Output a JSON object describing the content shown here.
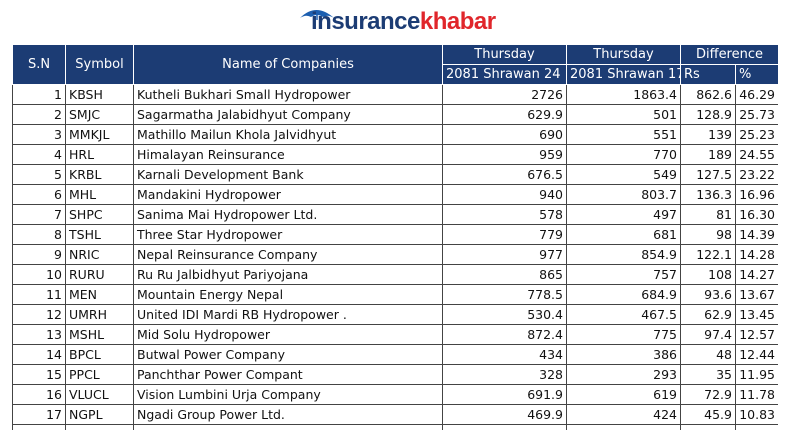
{
  "logo": {
    "part1": "insurance",
    "part2": "khabar"
  },
  "table": {
    "header": {
      "sn": "S.N",
      "symbol": "Symbol",
      "name": "Name of Companies",
      "current_day": "Thursday",
      "current_date": "2081 Shrawan 24",
      "previous_day": "Thursday",
      "previous_date": "2081 Shrawan 17",
      "difference": "Difference",
      "rs": "Rs",
      "pct": "%"
    },
    "rows": [
      [
        "1",
        "KBSH",
        "Kutheli Bukhari Small Hydropower",
        "2726",
        "1863.4",
        "862.6",
        "46.29"
      ],
      [
        "2",
        "SMJC",
        "Sagarmatha Jalabidhyut Company",
        "629.9",
        "501",
        "128.9",
        "25.73"
      ],
      [
        "3",
        "MMKJL",
        "Mathillo Mailun Khola Jalvidhyut",
        "690",
        "551",
        "139",
        "25.23"
      ],
      [
        "4",
        "HRL",
        "Himalayan Reinsurance",
        "959",
        "770",
        "189",
        "24.55"
      ],
      [
        "5",
        "KRBL",
        "Karnali Development Bank",
        "676.5",
        "549",
        "127.5",
        "23.22"
      ],
      [
        "6",
        "MHL",
        "Mandakini Hydropower",
        "940",
        "803.7",
        "136.3",
        "16.96"
      ],
      [
        "7",
        "SHPC",
        "Sanima Mai Hydropower Ltd.",
        "578",
        "497",
        "81",
        "16.30"
      ],
      [
        "8",
        "TSHL",
        "Three Star Hydropower",
        "779",
        "681",
        "98",
        "14.39"
      ],
      [
        "9",
        "NRIC",
        "Nepal Reinsurance Company",
        "977",
        "854.9",
        "122.1",
        "14.28"
      ],
      [
        "10",
        "RURU",
        "Ru Ru Jalbidhyut Pariyojana",
        "865",
        "757",
        "108",
        "14.27"
      ],
      [
        "11",
        "MEN",
        "Mountain Energy Nepal",
        "778.5",
        "684.9",
        "93.6",
        "13.67"
      ],
      [
        "12",
        "UMRH",
        "United IDI Mardi RB Hydropower  .",
        "530.4",
        "467.5",
        "62.9",
        "13.45"
      ],
      [
        "13",
        "MSHL",
        "Mid Solu Hydropower",
        "872.4",
        "775",
        "97.4",
        "12.57"
      ],
      [
        "14",
        "BPCL",
        "Butwal Power Company",
        "434",
        "386",
        "48",
        "12.44"
      ],
      [
        "15",
        "PPCL",
        "Panchthar Power Compant",
        "328",
        "293",
        "35",
        "11.95"
      ],
      [
        "16",
        "VLUCL",
        "Vision Lumbini Urja Company",
        "691.9",
        "619",
        "72.9",
        "11.78"
      ],
      [
        "17",
        "NGPL",
        "Ngadi Group Power Ltd.",
        "469.9",
        "424",
        "45.9",
        "10.83"
      ]
    ]
  }
}
